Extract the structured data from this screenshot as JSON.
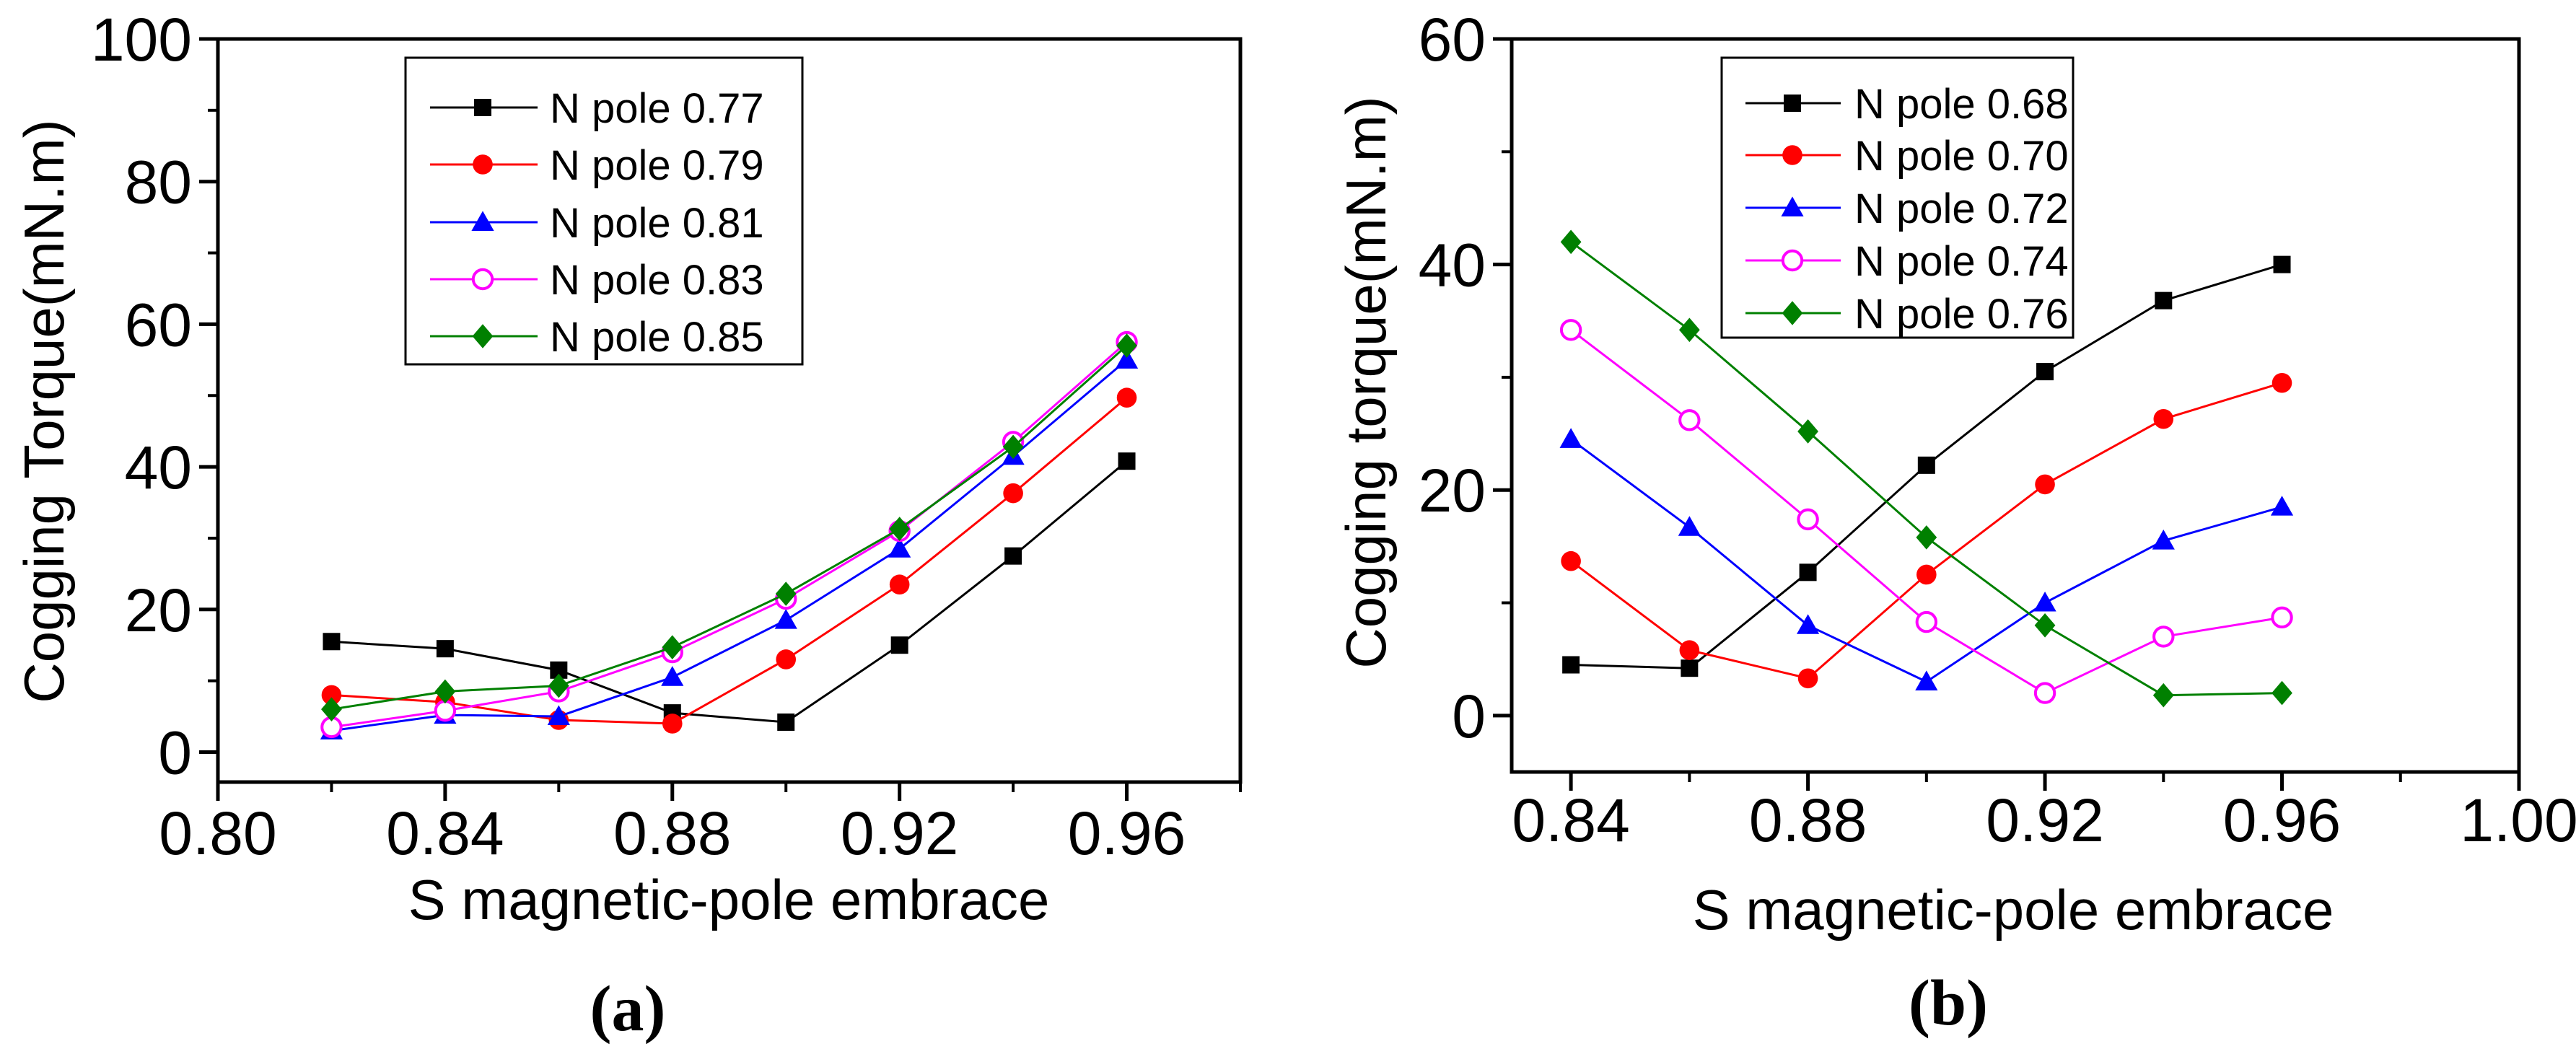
{
  "chart_data": [
    {
      "type": "line",
      "caption": "(a)",
      "xlabel": "S magnetic-pole embrace",
      "ylabel": "Cogging Torque(mN.m)",
      "xlim": [
        0.8,
        0.98
      ],
      "ylim": [
        -4.2,
        100
      ],
      "xticks": [
        "0.80",
        "0.84",
        "0.88",
        "0.92",
        "0.96"
      ],
      "yticks": [
        "0",
        "20",
        "40",
        "60",
        "80",
        "100"
      ],
      "legend_position": "top-center",
      "x": [
        0.82,
        0.84,
        0.86,
        0.88,
        0.9,
        0.92,
        0.94,
        0.96
      ],
      "series": [
        {
          "name": "N pole 0.77",
          "color": "#000000",
          "marker": "square",
          "values": [
            15.5,
            14.5,
            11.5,
            5.5,
            4.2,
            15.0,
            27.5,
            40.8
          ]
        },
        {
          "name": "N pole 0.79",
          "color": "#ff0000",
          "marker": "circle",
          "values": [
            8.0,
            7.0,
            4.5,
            4.0,
            13.0,
            23.5,
            36.3,
            49.7
          ]
        },
        {
          "name": "N pole 0.81",
          "color": "#0000ff",
          "marker": "triangle",
          "values": [
            3.0,
            5.2,
            5.0,
            10.5,
            18.5,
            28.5,
            41.5,
            55.0
          ]
        },
        {
          "name": "N pole 0.83",
          "color": "#ff00ff",
          "marker": "open-circle",
          "values": [
            3.5,
            5.8,
            8.5,
            14.0,
            21.5,
            31.0,
            43.5,
            57.5
          ]
        },
        {
          "name": "N pole 0.85",
          "color": "#008000",
          "marker": "diamond",
          "values": [
            6.0,
            8.5,
            9.3,
            14.7,
            22.2,
            31.3,
            42.8,
            57.0
          ]
        }
      ]
    },
    {
      "type": "line",
      "caption": "(b)",
      "xlabel": "S magnetic-pole embrace",
      "ylabel": "Cogging torque(mN.m)",
      "xlim": [
        0.83,
        1.0
      ],
      "ylim": [
        -5,
        60
      ],
      "xticks": [
        "0.84",
        "0.88",
        "0.92",
        "0.96",
        "1.00"
      ],
      "yticks": [
        "0",
        "20",
        "40",
        "60"
      ],
      "legend_position": "top-center",
      "x": [
        0.84,
        0.86,
        0.88,
        0.9,
        0.92,
        0.94,
        0.96
      ],
      "series": [
        {
          "name": "N pole 0.68",
          "color": "#000000",
          "marker": "square",
          "values": [
            4.5,
            4.2,
            12.7,
            22.2,
            30.5,
            36.8,
            40.0
          ]
        },
        {
          "name": "N pole 0.70",
          "color": "#ff0000",
          "marker": "circle",
          "values": [
            13.7,
            5.8,
            3.3,
            12.5,
            20.5,
            26.3,
            29.5
          ]
        },
        {
          "name": "N pole 0.72",
          "color": "#0000ff",
          "marker": "triangle",
          "values": [
            24.5,
            16.7,
            8.0,
            3.0,
            10.0,
            15.5,
            18.5
          ]
        },
        {
          "name": "N pole 0.74",
          "color": "#ff00ff",
          "marker": "open-circle",
          "values": [
            34.2,
            26.2,
            17.4,
            8.3,
            2.0,
            7.0,
            8.7
          ]
        },
        {
          "name": "N pole 0.76",
          "color": "#008000",
          "marker": "diamond",
          "values": [
            42.0,
            34.2,
            25.2,
            15.8,
            8.0,
            1.8,
            2.0
          ]
        }
      ]
    }
  ]
}
